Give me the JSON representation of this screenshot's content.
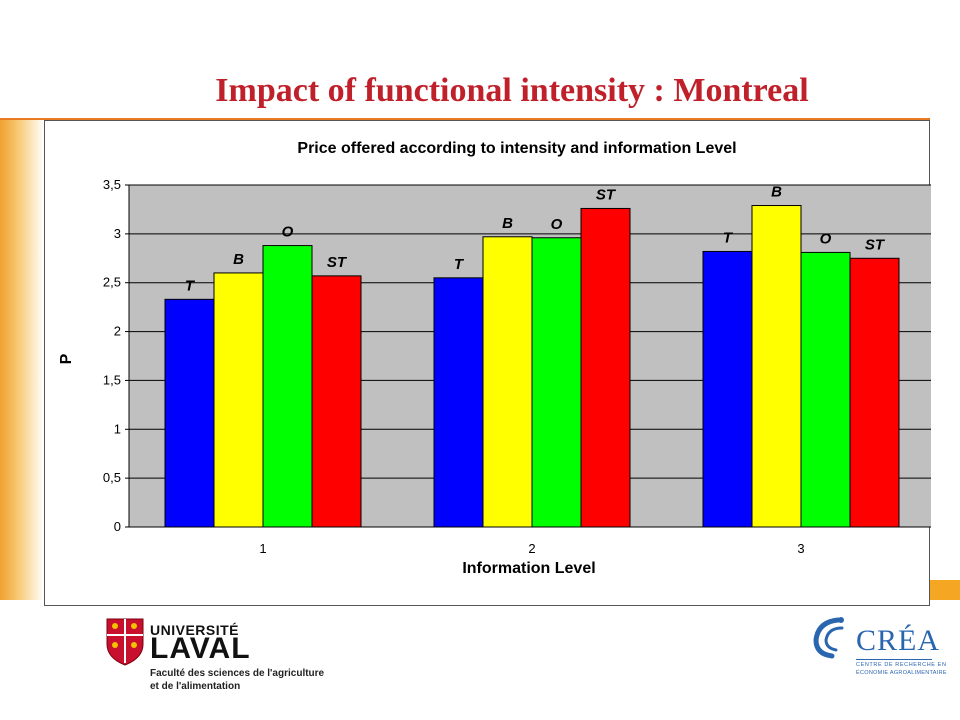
{
  "slide": {
    "title": "Impact of functional intensity : Montreal"
  },
  "colors": {
    "title": "#c0202a",
    "accent_orange": "#f5a623",
    "plot_background": "#c0c0c0"
  },
  "chart_data": {
    "type": "bar",
    "title": "Price offered according to intensity and information Level",
    "xlabel": "Information Level",
    "ylabel": "P",
    "categories": [
      "1",
      "2",
      "3"
    ],
    "ylim": [
      0,
      3.5
    ],
    "yticks": [
      "0",
      "0,5",
      "1",
      "1,5",
      "2",
      "2,5",
      "3",
      "3,5"
    ],
    "grid": true,
    "legend": "none",
    "series": [
      {
        "name": "T",
        "color": "#0000ff",
        "values": [
          2.33,
          2.55,
          2.82
        ]
      },
      {
        "name": "B",
        "color": "#ffff00",
        "values": [
          2.6,
          2.97,
          3.29
        ]
      },
      {
        "name": "O",
        "color": "#00ff00",
        "values": [
          2.88,
          2.96,
          2.81
        ]
      },
      {
        "name": "ST",
        "color": "#ff0000",
        "values": [
          2.57,
          3.26,
          2.75
        ]
      }
    ]
  },
  "logos": {
    "laval": {
      "line1": "UNIVERSITÉ",
      "line2": "LAVAL",
      "faculty1": "Faculté des sciences de l'agriculture",
      "faculty2": "et de l'alimentation",
      "icon": "coat-of-arms-icon"
    },
    "crea": {
      "name": "CRÉA",
      "sub1": "CENTRE DE RECHERCHE EN",
      "sub2": "ÉCONOMIE AGROALIMENTAIRE",
      "icon": "swirl-icon"
    }
  }
}
